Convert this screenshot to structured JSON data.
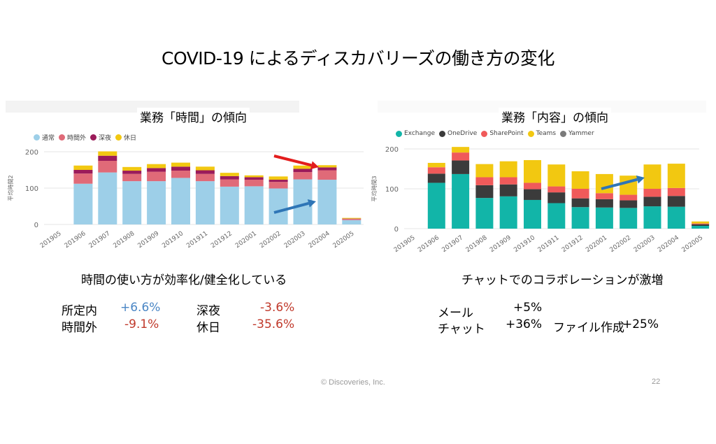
{
  "title": "COVID-19 によるディスカバリーズの働き方の変化",
  "colors": {
    "time_series": [
      "#9dcfe8",
      "#e06a78",
      "#9b1b5a",
      "#f2c811"
    ],
    "content_series": [
      "#12b5a8",
      "#3b3b3b",
      "#f05a5a",
      "#f2c811",
      "#7a7a7a"
    ],
    "arrow_red": "#e31c1c",
    "arrow_blue": "#2e75b6"
  },
  "left": {
    "subtitle": "業務「時間」の傾向",
    "caption": "時間の使い方が効率化/健全化している",
    "stats": [
      {
        "label": "所定内",
        "value": "+6.6%"
      },
      {
        "label": "時間外",
        "value": "-9.1%"
      },
      {
        "label": "深夜",
        "value": "-3.6%"
      },
      {
        "label": "休日",
        "value": "-35.6%"
      }
    ]
  },
  "right": {
    "subtitle": "業務「内容」の傾向",
    "caption": "チャットでのコラボレーションが激増",
    "stats": [
      {
        "label": "メール",
        "value": "+5%"
      },
      {
        "label": "チャット",
        "value": "+36%"
      },
      {
        "label": "ファイル作成",
        "value": "+25%"
      }
    ]
  },
  "chart_data": [
    {
      "type": "bar",
      "stacked": true,
      "title": "業務「時間」の傾向",
      "ylabel": "平均時間2",
      "ylim": [
        0,
        200
      ],
      "yticks": [
        0,
        100,
        200
      ],
      "grid": true,
      "legend_placement": "top-left",
      "categories": [
        "201905",
        "201906",
        "201907",
        "201908",
        "201909",
        "201910",
        "201911",
        "201912",
        "202001",
        "202002",
        "202003",
        "202004",
        "202005"
      ],
      "series": [
        {
          "name": "通常",
          "values": [
            0,
            112,
            143,
            119,
            119,
            128,
            119,
            104,
            105,
            99,
            124,
            123,
            12
          ]
        },
        {
          "name": "時間外",
          "values": [
            0,
            28,
            32,
            20,
            26,
            20,
            20,
            20,
            18,
            18,
            20,
            26,
            3
          ]
        },
        {
          "name": "深夜",
          "values": [
            0,
            10,
            14,
            9,
            10,
            11,
            10,
            9,
            7,
            6,
            9,
            8,
            1
          ]
        },
        {
          "name": "休日",
          "values": [
            0,
            12,
            12,
            10,
            11,
            11,
            10,
            9,
            5,
            9,
            9,
            6,
            2
          ]
        }
      ]
    },
    {
      "type": "bar",
      "stacked": true,
      "title": "業務「内容」の傾向",
      "ylabel": "平均時間3",
      "ylim": [
        0,
        200
      ],
      "yticks": [
        0,
        100,
        200
      ],
      "grid": true,
      "legend_placement": "top-left",
      "categories": [
        "201905",
        "201906",
        "201907",
        "201908",
        "201909",
        "201910",
        "201911",
        "201912",
        "202001",
        "202002",
        "202003",
        "202004",
        "202005"
      ],
      "series": [
        {
          "name": "Exchange",
          "values": [
            0,
            115,
            137,
            77,
            81,
            72,
            64,
            54,
            53,
            52,
            56,
            55,
            7
          ]
        },
        {
          "name": "OneDrive",
          "values": [
            0,
            23,
            34,
            32,
            30,
            27,
            27,
            22,
            21,
            19,
            24,
            27,
            4
          ]
        },
        {
          "name": "SharePoint",
          "values": [
            0,
            16,
            20,
            20,
            18,
            16,
            15,
            24,
            15,
            14,
            20,
            20,
            2
          ]
        },
        {
          "name": "Teams",
          "values": [
            0,
            11,
            14,
            33,
            40,
            57,
            55,
            44,
            48,
            48,
            61,
            61,
            5
          ]
        },
        {
          "name": "Yammer",
          "values": [
            0,
            0,
            0,
            0,
            0,
            0,
            0,
            0,
            0,
            0,
            0,
            0,
            0
          ]
        }
      ]
    }
  ]
}
